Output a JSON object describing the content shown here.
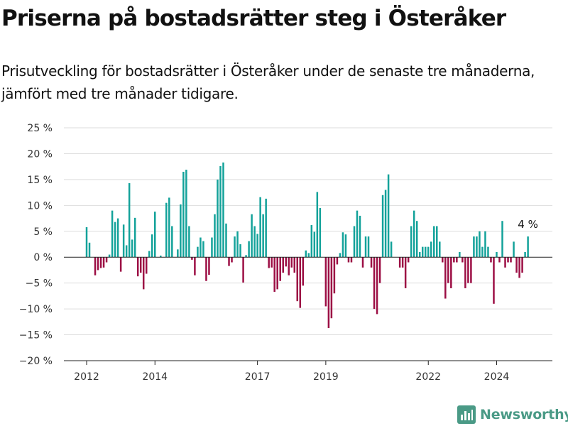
{
  "header": {
    "title": "Priserna på bostadsrätter steg i Österåker",
    "subtitle": "Prisutveckling för bostadsrätter i Österåker under de senaste tre månaderna, jämfört med tre månader tidigare."
  },
  "brand": {
    "name": "Newsworthy",
    "icon": "newsworthy-logo-icon",
    "color": "#4a9a86"
  },
  "chart_data": {
    "type": "bar",
    "xlabel": "",
    "ylabel": "",
    "ylim": [
      -20,
      25
    ],
    "yticks": [
      25,
      20,
      15,
      10,
      5,
      0,
      -5,
      -10,
      -15,
      -20
    ],
    "ytick_labels": [
      "25 %",
      "20 %",
      "15 %",
      "10 %",
      "5 %",
      "0 %",
      "−5 %",
      "−10 %",
      "−15 %",
      "−20 %"
    ],
    "xticks": [
      {
        "label": "2012",
        "x": "2012-01"
      },
      {
        "label": "2014",
        "x": "2014-01"
      },
      {
        "label": "2017",
        "x": "2017-01"
      },
      {
        "label": "2019",
        "x": "2019-01"
      },
      {
        "label": "2022",
        "x": "2022-01"
      },
      {
        "label": "2024",
        "x": "2024-01"
      }
    ],
    "grid": true,
    "colors": {
      "positive": "#13a29a",
      "negative": "#9c0e44",
      "grid": "#dddddd",
      "axis": "#222222"
    },
    "annotation": {
      "text": "4 %",
      "x": "2024-12"
    },
    "x": [
      "2012-01",
      "2012-02",
      "2012-03",
      "2012-04",
      "2012-05",
      "2012-06",
      "2012-07",
      "2012-08",
      "2012-09",
      "2012-10",
      "2012-11",
      "2012-12",
      "2013-01",
      "2013-02",
      "2013-03",
      "2013-04",
      "2013-05",
      "2013-06",
      "2013-07",
      "2013-08",
      "2013-09",
      "2013-10",
      "2013-11",
      "2013-12",
      "2014-01",
      "2014-02",
      "2014-03",
      "2014-04",
      "2014-05",
      "2014-06",
      "2014-07",
      "2014-08",
      "2014-09",
      "2014-10",
      "2014-11",
      "2014-12",
      "2015-01",
      "2015-02",
      "2015-03",
      "2015-04",
      "2015-05",
      "2015-06",
      "2015-07",
      "2015-08",
      "2015-09",
      "2015-10",
      "2015-11",
      "2015-12",
      "2016-01",
      "2016-02",
      "2016-03",
      "2016-04",
      "2016-05",
      "2016-06",
      "2016-07",
      "2016-08",
      "2016-09",
      "2016-10",
      "2016-11",
      "2016-12",
      "2017-01",
      "2017-02",
      "2017-03",
      "2017-04",
      "2017-05",
      "2017-06",
      "2017-07",
      "2017-08",
      "2017-09",
      "2017-10",
      "2017-11",
      "2017-12",
      "2018-01",
      "2018-02",
      "2018-03",
      "2018-04",
      "2018-05",
      "2018-06",
      "2018-07",
      "2018-08",
      "2018-09",
      "2018-10",
      "2018-11",
      "2018-12",
      "2019-01",
      "2019-02",
      "2019-03",
      "2019-04",
      "2019-05",
      "2019-06",
      "2019-07",
      "2019-08",
      "2019-09",
      "2019-10",
      "2019-11",
      "2019-12",
      "2020-01",
      "2020-02",
      "2020-03",
      "2020-04",
      "2020-05",
      "2020-06",
      "2020-07",
      "2020-08",
      "2020-09",
      "2020-10",
      "2020-11",
      "2020-12",
      "2021-01",
      "2021-02",
      "2021-03",
      "2021-04",
      "2021-05",
      "2021-06",
      "2021-07",
      "2021-08",
      "2021-09",
      "2021-10",
      "2021-11",
      "2021-12",
      "2022-01",
      "2022-02",
      "2022-03",
      "2022-04",
      "2022-05",
      "2022-06",
      "2022-07",
      "2022-08",
      "2022-09",
      "2022-10",
      "2022-11",
      "2022-12",
      "2023-01",
      "2023-02",
      "2023-03",
      "2023-04",
      "2023-05",
      "2023-06",
      "2023-07",
      "2023-08",
      "2023-09",
      "2023-10",
      "2023-11",
      "2023-12",
      "2024-01",
      "2024-02",
      "2024-03",
      "2024-04",
      "2024-05",
      "2024-06",
      "2024-07",
      "2024-08",
      "2024-09",
      "2024-10",
      "2024-11",
      "2024-12"
    ],
    "values": [
      5.8,
      2.8,
      0,
      -3.5,
      -2.5,
      -2.1,
      -2.0,
      -1.0,
      0.5,
      9.0,
      6.8,
      7.5,
      -2.8,
      6.3,
      2.3,
      14.3,
      3.4,
      7.6,
      -3.7,
      -3.0,
      -6.2,
      -3.2,
      1.2,
      4.4,
      8.8,
      0,
      0.3,
      0,
      10.5,
      11.5,
      6.0,
      0,
      1.5,
      10.2,
      16.5,
      16.9,
      6.0,
      -0.5,
      -3.5,
      2.0,
      3.8,
      3.1,
      -4.6,
      -3.4,
      3.8,
      8.3,
      15.0,
      17.6,
      18.3,
      6.5,
      -1.7,
      -1.0,
      4.0,
      5.0,
      2.5,
      -4.9,
      0.4,
      3.1,
      8.3,
      6.0,
      4.5,
      11.6,
      8.3,
      11.3,
      -2.1,
      -2.0,
      -6.7,
      -6.2,
      -4.6,
      -3.0,
      -1.8,
      -3.5,
      -2.0,
      -3.0,
      -8.5,
      -9.8,
      -5.5,
      1.3,
      0.8,
      6.2,
      4.9,
      12.6,
      9.5,
      0,
      -9.5,
      -13.7,
      -11.8,
      -7.0,
      -1.4,
      0.8,
      4.8,
      4.4,
      -1.0,
      -1.0,
      6.0,
      9.0,
      8.0,
      -2.0,
      4.0,
      4.0,
      -2.0,
      -10.0,
      -11.0,
      -5.0,
      12.0,
      13.0,
      16.0,
      3.0,
      0,
      0,
      -2.0,
      -2.0,
      -6.0,
      -1.0,
      6.0,
      9.0,
      7.0,
      1.0,
      2.0,
      2.0,
      2.0,
      3.0,
      6.0,
      6.0,
      3.0,
      -1.0,
      -8.0,
      -5.0,
      -6.0,
      -1.0,
      -1.0,
      1.0,
      -1.0,
      -6.0,
      -5.0,
      -5.0,
      4.0,
      4.0,
      5.0,
      2.0,
      5.0,
      2.0,
      -1.0,
      -9.0,
      1.0,
      -1.0,
      7.0,
      -2.0,
      -1.0,
      -1.0,
      3.0,
      -3.0,
      -4.0,
      -3.0,
      1.0,
      4.0
    ]
  }
}
